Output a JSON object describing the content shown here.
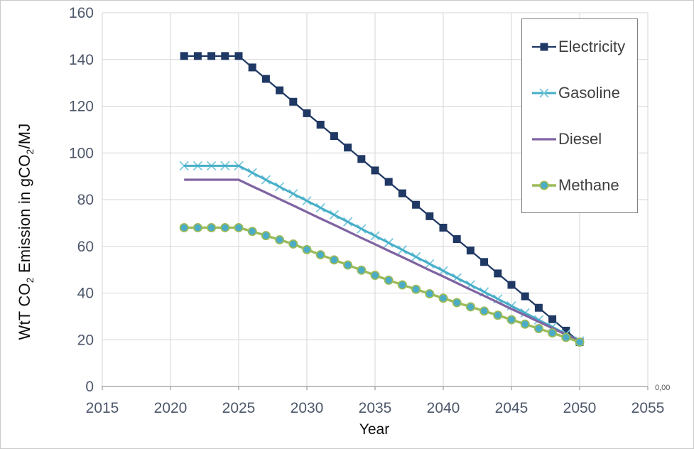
{
  "chart_data": {
    "type": "line",
    "title": "",
    "xlabel": "Year",
    "ylabel": "WtT CO2 Emission in gCO2/MJ",
    "grid": true,
    "legend_position": "right-inside",
    "x_axis": {
      "label": "Year",
      "range": [
        2015,
        2055
      ],
      "ticks": [
        2015,
        2020,
        2025,
        2030,
        2035,
        2040,
        2045,
        2050,
        2055
      ]
    },
    "y_axis": {
      "label_parts": [
        "WtT CO",
        "2",
        " Emission in gCO",
        "2",
        "/MJ"
      ],
      "range": [
        0,
        160
      ],
      "ticks": [
        0,
        20,
        40,
        60,
        80,
        100,
        120,
        140,
        160
      ]
    },
    "secondary_axis_label": "0,00",
    "x": [
      2021,
      2022,
      2023,
      2024,
      2025,
      2026,
      2027,
      2028,
      2029,
      2030,
      2031,
      2032,
      2033,
      2034,
      2035,
      2036,
      2037,
      2038,
      2039,
      2040,
      2041,
      2042,
      2043,
      2044,
      2045,
      2046,
      2047,
      2048,
      2049,
      2050
    ],
    "series": [
      {
        "name": "Electricity",
        "color": "#1F3864",
        "marker": "square",
        "line_width": 2.25,
        "x": [
          2021,
          2022,
          2023,
          2024,
          2025,
          2026,
          2027,
          2028,
          2029,
          2030,
          2031,
          2032,
          2033,
          2034,
          2035,
          2036,
          2037,
          2038,
          2039,
          2040,
          2041,
          2042,
          2043,
          2044,
          2045,
          2046,
          2047,
          2048,
          2049,
          2050
        ],
        "y": [
          141.5,
          141.5,
          141.5,
          141.5,
          141.5,
          136.6,
          131.7,
          126.8,
          121.9,
          117.0,
          112.1,
          107.2,
          102.3,
          97.4,
          92.5,
          87.6,
          82.7,
          77.8,
          72.9,
          68.0,
          63.1,
          58.2,
          53.3,
          48.4,
          43.5,
          38.6,
          33.7,
          28.8,
          23.9,
          19.0
        ]
      },
      {
        "name": "Gasoline",
        "color": "#46AEC8",
        "marker": "x",
        "marker_color": "#7CC8DC",
        "line_width": 3,
        "x": [
          2021,
          2022,
          2023,
          2024,
          2025,
          2026,
          2027,
          2028,
          2029,
          2030,
          2031,
          2032,
          2033,
          2034,
          2035,
          2036,
          2037,
          2038,
          2039,
          2040,
          2041,
          2042,
          2043,
          2044,
          2045,
          2046,
          2047,
          2048,
          2049,
          2050
        ],
        "y": [
          94.5,
          94.5,
          94.5,
          94.5,
          94.5,
          91.5,
          88.5,
          85.5,
          82.5,
          79.5,
          76.5,
          73.5,
          70.5,
          67.5,
          64.5,
          61.5,
          58.5,
          55.5,
          52.5,
          49.5,
          46.5,
          43.5,
          40.5,
          37.5,
          34.5,
          31.5,
          28.5,
          25.5,
          22.5,
          19.5
        ]
      },
      {
        "name": "Diesel",
        "color": "#8064A2",
        "marker": "none",
        "line_width": 3.25,
        "x": [
          2021,
          2022,
          2023,
          2024,
          2025,
          2026,
          2027,
          2028,
          2029,
          2030,
          2031,
          2032,
          2033,
          2034,
          2035,
          2036,
          2037,
          2038,
          2039,
          2040,
          2041,
          2042,
          2043,
          2044,
          2045,
          2046,
          2047,
          2048,
          2049,
          2050
        ],
        "y": [
          88.5,
          88.5,
          88.5,
          88.5,
          88.5,
          85.7,
          83.0,
          80.2,
          77.5,
          74.7,
          71.9,
          69.2,
          66.4,
          63.6,
          60.9,
          58.1,
          55.4,
          52.6,
          49.8,
          47.1,
          44.3,
          41.5,
          38.8,
          36.0,
          33.2,
          30.5,
          27.7,
          25.0,
          22.2,
          19.4
        ]
      },
      {
        "name": "Methane",
        "color": "#9BBB59",
        "marker": "circle",
        "marker_fill": "#4BACC6",
        "line_width": 3.4,
        "x": [
          2021,
          2022,
          2023,
          2024,
          2025,
          2026,
          2027,
          2028,
          2029,
          2030,
          2031,
          2032,
          2033,
          2034,
          2035,
          2036,
          2037,
          2038,
          2039,
          2040,
          2041,
          2042,
          2043,
          2044,
          2045,
          2046,
          2047,
          2048,
          2049,
          2050
        ],
        "y": [
          68.0,
          68.0,
          68.0,
          68.0,
          68.0,
          66.4,
          64.6,
          62.8,
          61.0,
          58.6,
          56.4,
          54.2,
          52.0,
          49.8,
          47.6,
          45.5,
          43.5,
          41.6,
          39.7,
          37.8,
          35.9,
          34.1,
          32.3,
          30.5,
          28.6,
          26.7,
          24.8,
          22.9,
          21.0,
          19.0
        ]
      }
    ]
  }
}
